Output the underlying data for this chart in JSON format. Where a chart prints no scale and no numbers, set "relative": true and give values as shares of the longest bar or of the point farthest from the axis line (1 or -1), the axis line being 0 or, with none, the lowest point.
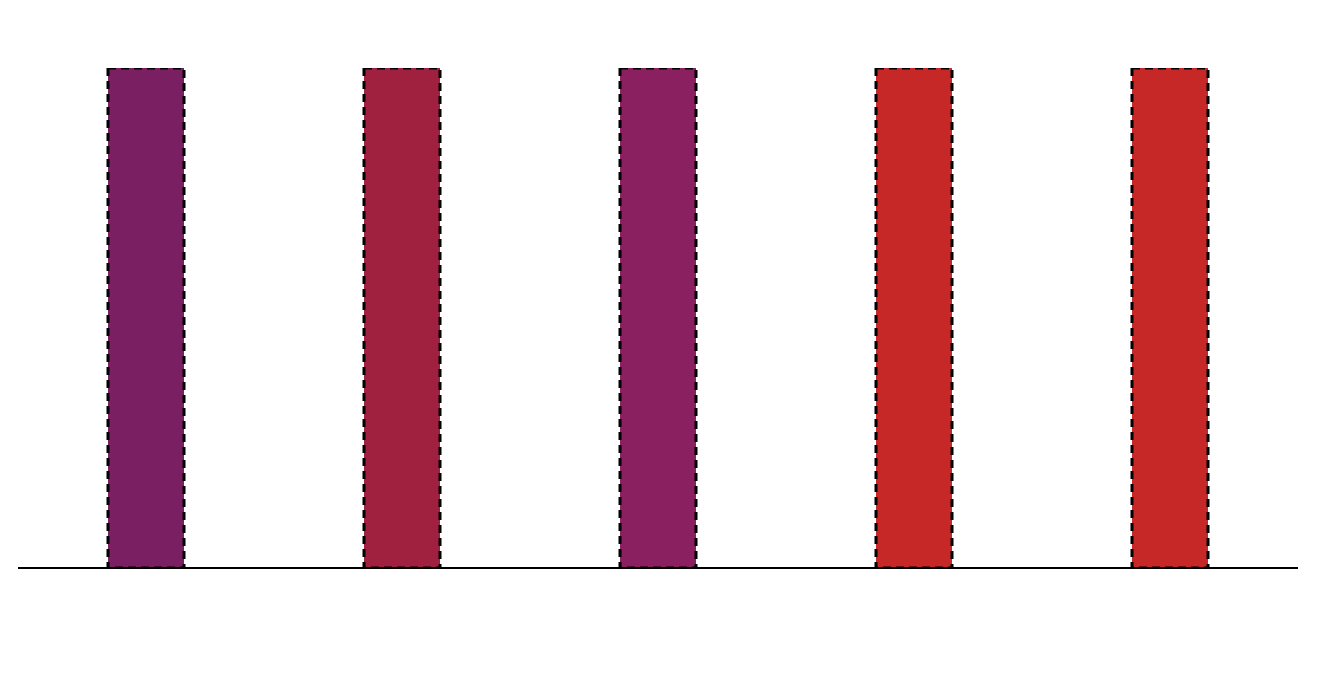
{
  "chart_data": {
    "type": "bar",
    "relative": true,
    "categories": [
      null,
      null,
      null,
      null,
      null
    ],
    "values": [
      1,
      1,
      1,
      1,
      1
    ],
    "colors": [
      "#7b1f63",
      "#a0203f",
      "#8b2060",
      "#c62828",
      "#c62828"
    ]
  }
}
